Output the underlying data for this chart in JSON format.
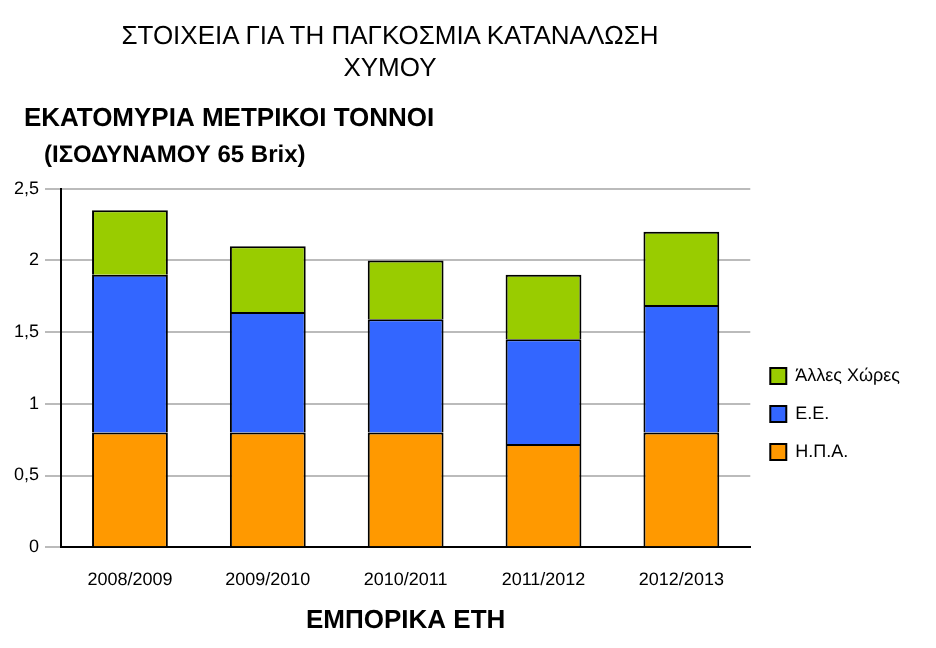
{
  "chart_data": {
    "type": "bar",
    "title": "ΣΤΟΙΧΕΙΑ ΓΙΑ ΤΗ ΠΑΓΚΟΣΜΙΑ ΚΑΤΑΝΑΛΩΣΗ ΧΥΜΟΥ",
    "ylabel": "ΕΚΑΤΟΜΥΡΙΑ ΜΕΤΡΙΚΟΙ ΤΟΝΝΟΙ",
    "subtitle": "(ΙΣΟΔΥΝΑΜΟΥ 65 Brix)",
    "xlabel": "ΕΜΠΟΡΙΚΑ ΕΤΗ",
    "categories": [
      "2008/2009",
      "2009/2010",
      "2010/2011",
      "2011/2012",
      "2012/2013"
    ],
    "stacked": true,
    "series": [
      {
        "name": "Η.Π.Α.",
        "color": "#ff9900",
        "values": [
          0.8,
          0.8,
          0.8,
          0.72,
          0.8
        ]
      },
      {
        "name": "Ε.Ε.",
        "color": "#3366ff",
        "values": [
          1.1,
          0.84,
          0.79,
          0.73,
          0.89
        ]
      },
      {
        "name": "Άλλες Χώρες",
        "color": "#99cc00",
        "values": [
          0.45,
          0.46,
          0.41,
          0.45,
          0.51
        ]
      }
    ],
    "ylim": [
      0,
      2.5
    ],
    "yticks": [
      {
        "value": 0,
        "label": "0"
      },
      {
        "value": 0.5,
        "label": "0,5"
      },
      {
        "value": 1,
        "label": "1"
      },
      {
        "value": 1.5,
        "label": "1,5"
      },
      {
        "value": 2,
        "label": "2"
      },
      {
        "value": 2.5,
        "label": "2,5"
      }
    ],
    "grid": "y",
    "legend": "right"
  }
}
